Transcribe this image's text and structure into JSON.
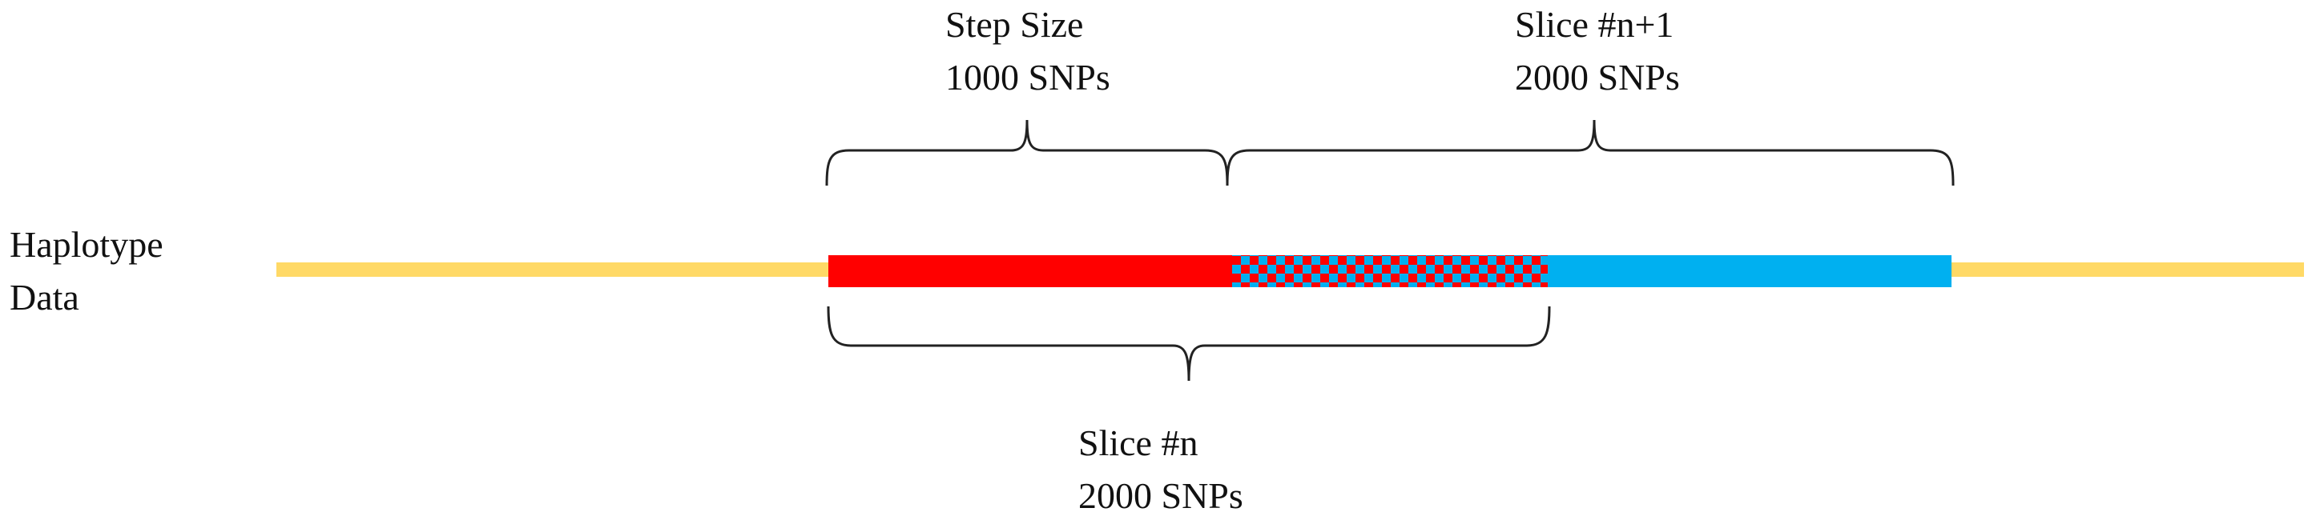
{
  "labels": {
    "haplotype": {
      "line1": "Haplotype",
      "line2": "Data"
    },
    "step_size": {
      "line1": "Step Size",
      "line2": "1000 SNPs"
    },
    "slice_n_plus_1": {
      "line1": "Slice #n+1",
      "line2": "2000 SNPs"
    },
    "slice_n": {
      "line1": "Slice #n",
      "line2": "2000 SNPs"
    }
  },
  "colors": {
    "haplotype_line": "#FFD966",
    "slice_n_segment": "#FF0000",
    "slice_n_plus_1_segment": "#00B0F0",
    "overlap_check_a": "#FF0000",
    "overlap_check_b": "#00B0F0",
    "bracket": "#222222"
  }
}
